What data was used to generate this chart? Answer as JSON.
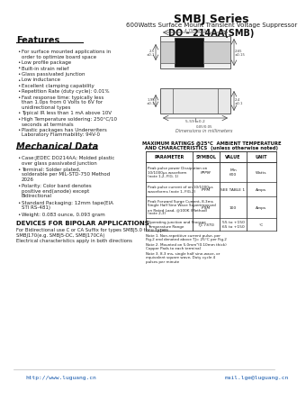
{
  "title": "SMBJ Series",
  "subtitle": "600Watts Surface Mount Transient Voltage Suppressor",
  "package": "DO - 214AA(SMB)",
  "features_title": "Features",
  "features": [
    "For surface mounted applications in order to optimize board space",
    "Low profile package",
    "Built-in strain relief",
    "Glass passivated junction",
    "Low inductance",
    "Excellent clamping capability",
    "Repetition Rate (duty cycle): 0.01%",
    "Fast response time: typically less than 1.0ps from 0 Volts to 6V for unidirectional types",
    "Typical IR less than 1 mA above 10V",
    "High Temperature soldering: 250°C/10 seconds at terminals",
    "Plastic packages has Underwriters Laboratory Flammability: 94V-0"
  ],
  "mech_title": "Mechanical Data",
  "mech": [
    "Case:JEDEC DO214AA; Molded plastic over glass passivated junction",
    "Terminal: Solder plated, solderable per MIL-STD-750 Method 2026",
    "Polarity: Color band denotes positive end(anode) except Bidirectional",
    "Standard Packaging: 12mm tape(EIA STI RS-481)",
    "Weight: 0.083 ounce, 0.093 gram"
  ],
  "devices_title": "DEVICES FOR BIPOLAR APPLICATIONS",
  "devices_lines": [
    "For Bidirectional use C or CA Suffix for types SMBJ5.0 thru types",
    "SMBJ170(e.g. SMBJ5-DC, SMBJ170CA)",
    "Electrical characteristics apply in both directions"
  ],
  "table_title_line1": "MAXIMUM RATINGS @25°C  AMBIENT TEMPERATURE",
  "table_title_line2": "AND CHARACTERISTICS  (unless otherwise noted)",
  "table_headers": [
    "PARAMETER",
    "SYMBOL",
    "VALUE",
    "UNIT"
  ],
  "table_rows": [
    {
      "param": [
        "Peak pulse power Dissipation on",
        "10/1000μs waveform",
        "(note 1,2, FIG. 1)"
      ],
      "symbol": "PPPM",
      "value": [
        "Min",
        "600"
      ],
      "unit": "Watts"
    },
    {
      "param": [
        "Peak pulse current of on 10/1000μs",
        "waveforms (note 1, FIG.2)"
      ],
      "symbol": "IPPM",
      "value": [
        "SEE TABLE 1"
      ],
      "unit": "Amps"
    },
    {
      "param": [
        "Peak Forward Surge Current, 8.3ms",
        "Single Half Sine Wave Superimposed",
        "on Rated Load, @100K (Method)",
        "(note 2,3)"
      ],
      "symbol": "IFSM",
      "value": [
        "100"
      ],
      "unit": "Amps"
    },
    {
      "param": [
        "Operating junction and Storage",
        "Temperature Range"
      ],
      "symbol": "TJ, TSTG",
      "value": [
        "55 to +150",
        "65 to +150"
      ],
      "unit": "°C"
    }
  ],
  "note1": "Note 1. Non-repetitive current pulse, per Fig.2 and denoted above TJ= 25°C per Fig.2",
  "note2": "Note 2. Mounted on 5.0mm²(0.10mm thick) Copper Pads to each terminal",
  "note3": "Note 3. 8.3 ms, single half sine-wave, or equivalent square wave, Duty cycle 4 pulses per minute",
  "website": "http://www.luguang.cn",
  "email": "mail.lge@luguang.cn",
  "bg_color": "#ffffff",
  "text_color": "#222222",
  "header_color": "#111111"
}
